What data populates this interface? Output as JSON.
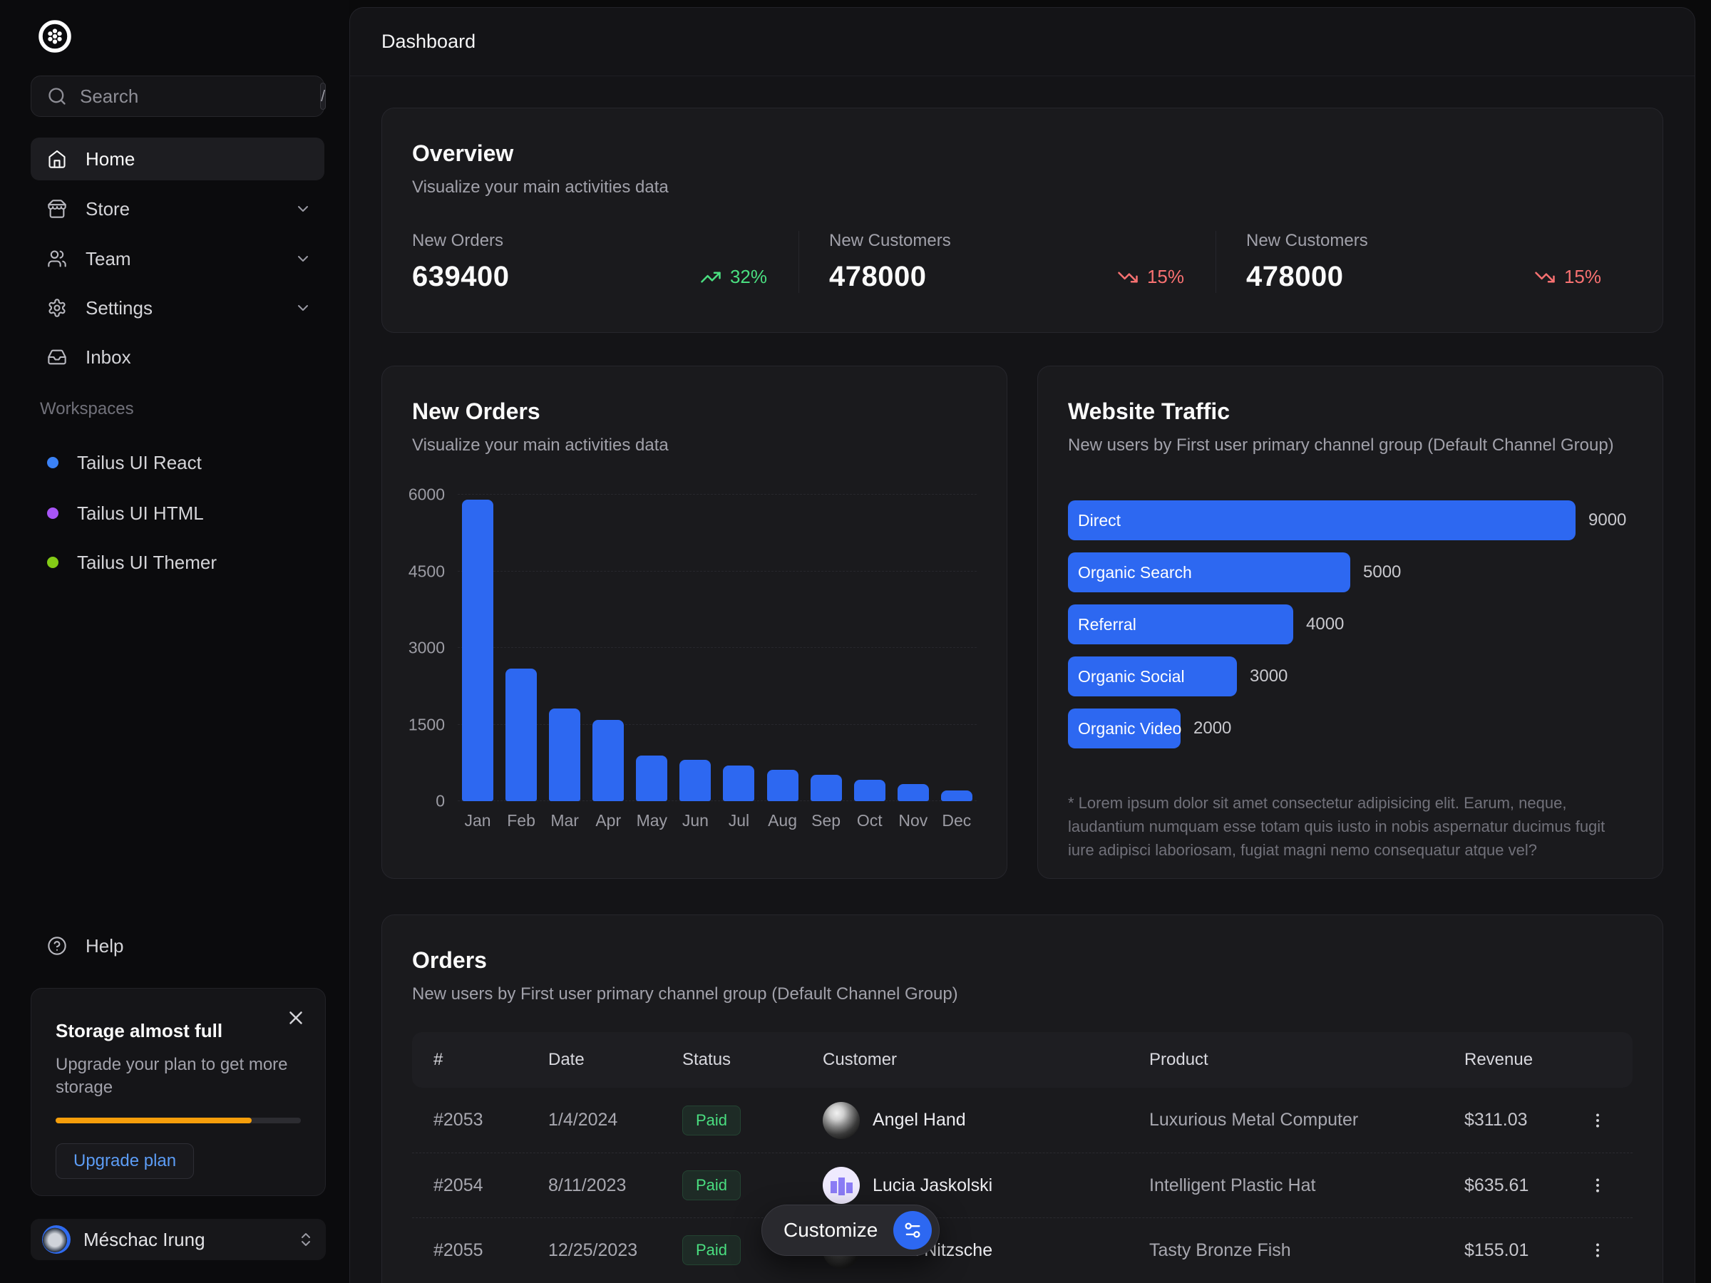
{
  "page": {
    "title": "Dashboard"
  },
  "colors": {
    "accent": "#2d68f1",
    "positive": "#4ade80",
    "negative": "#f87171",
    "warning": "#f59e0b"
  },
  "sidebar": {
    "search": {
      "placeholder": "Search",
      "shortcut": "/"
    },
    "nav": [
      {
        "label": "Home",
        "active": true,
        "expandable": false
      },
      {
        "label": "Store",
        "active": false,
        "expandable": true
      },
      {
        "label": "Team",
        "active": false,
        "expandable": true
      },
      {
        "label": "Settings",
        "active": false,
        "expandable": true
      },
      {
        "label": "Inbox",
        "active": false,
        "expandable": false
      }
    ],
    "workspaces_heading": "Workspaces",
    "workspaces": [
      {
        "label": "Tailus UI React",
        "dot_color": "#3b82f6"
      },
      {
        "label": "Tailus UI HTML",
        "dot_color": "#a855f7"
      },
      {
        "label": "Tailus UI Themer",
        "dot_color": "#84cc16"
      }
    ],
    "help_label": "Help",
    "storage_banner": {
      "title": "Storage almost full",
      "message": "Upgrade your plan to get more storage",
      "progress_percent": 80,
      "cta_label": "Upgrade plan"
    },
    "user": {
      "name": "Méschac Irung"
    }
  },
  "overview": {
    "title": "Overview",
    "subtitle": "Visualize your main activities data",
    "stats": [
      {
        "label": "New Orders",
        "value": "639400",
        "trend": "up",
        "delta": "32%"
      },
      {
        "label": "New Customers",
        "value": "478000",
        "trend": "down",
        "delta": "15%"
      },
      {
        "label": "New Customers",
        "value": "478000",
        "trend": "down",
        "delta": "15%"
      }
    ]
  },
  "chart_data": [
    {
      "type": "bar",
      "title": "New Orders",
      "subtitle": "Visualize your main activities data",
      "categories": [
        "Jan",
        "Feb",
        "Mar",
        "Apr",
        "May",
        "Jun",
        "Jul",
        "Aug",
        "Sep",
        "Oct",
        "Nov",
        "Dec"
      ],
      "values": [
        5900,
        2600,
        1820,
        1590,
        900,
        810,
        700,
        620,
        510,
        420,
        330,
        210
      ],
      "ylim": [
        0,
        6000
      ],
      "yticks": [
        0,
        1500,
        3000,
        4500,
        6000
      ],
      "grid": "dashed horizontal",
      "bar_color": "#2d68f1"
    },
    {
      "type": "bar-horizontal",
      "title": "Website Traffic",
      "subtitle": "New users by First user primary channel group (Default Channel Group)",
      "categories": [
        "Direct",
        "Organic Search",
        "Referral",
        "Organic Social",
        "Organic Video"
      ],
      "values": [
        9000,
        5000,
        4000,
        3000,
        2000
      ],
      "xmax": 9000,
      "bar_color": "#2d68f1",
      "footnote": "* Lorem ipsum dolor sit amet consectetur adipisicing elit. Earum, neque, laudantium numquam esse totam quis iusto in nobis aspernatur ducimus fugit iure adipisci laboriosam, fugiat magni nemo consequatur atque vel?"
    }
  ],
  "orders": {
    "title": "Orders",
    "subtitle": "New users by First user primary channel group (Default Channel Group)",
    "columns": [
      "#",
      "Date",
      "Status",
      "Customer",
      "Product",
      "Revenue"
    ],
    "rows": [
      {
        "id": "#2053",
        "date": "1/4/2024",
        "status": "Paid",
        "customer": "Angel Hand",
        "product": "Luxurious Metal Computer",
        "revenue": "$311.03"
      },
      {
        "id": "#2054",
        "date": "8/11/2023",
        "status": "Paid",
        "customer": "Lucia Jaskolski",
        "product": "Intelligent Plastic Hat",
        "revenue": "$635.61"
      },
      {
        "id": "#2055",
        "date": "12/25/2023",
        "status": "Paid",
        "customer": "Shem Nitzsche",
        "product": "Tasty Bronze Fish",
        "revenue": "$155.01"
      }
    ]
  },
  "customize": {
    "label": "Customize"
  }
}
